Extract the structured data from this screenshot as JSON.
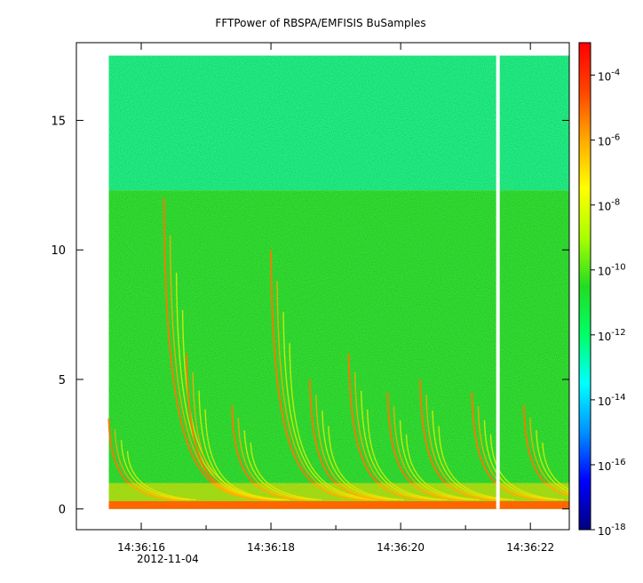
{
  "chart_data": {
    "type": "heatmap",
    "title": "FFTPower of RBSPA/EMFISIS  BuSamples",
    "xlabel": "",
    "ylabel": "",
    "x_range": [
      "14:36:15.0",
      "14:36:22.6"
    ],
    "y_range": [
      -0.8,
      18.0
    ],
    "x_ticks": [
      {
        "value": "14:36:16",
        "label": "14:36:16"
      },
      {
        "value": "14:36:18",
        "label": "14:36:18"
      },
      {
        "value": "14:36:20",
        "label": "14:36:20"
      },
      {
        "value": "14:36:22",
        "label": "14:36:22"
      }
    ],
    "x_minor_ticks": [
      "14:36:15.0",
      "14:36:17.0",
      "14:36:19.0",
      "14:36:21.0"
    ],
    "date_label": "2012-11-04",
    "y_ticks": [
      0,
      5,
      10,
      15
    ],
    "data_extent": {
      "time_start": "14:36:15.5",
      "time_end": "14:36:22.6",
      "freq_min": 0,
      "freq_max": 17.5
    },
    "gaps": [
      {
        "time": "14:36:21.5"
      }
    ],
    "colorbar": {
      "scale": "log",
      "range": [
        1e-18,
        0.001
      ],
      "tick_labels": [
        {
          "base": "10",
          "exp": "-4"
        },
        {
          "base": "10",
          "exp": "-6"
        },
        {
          "base": "10",
          "exp": "-8"
        },
        {
          "base": "10",
          "exp": "-10"
        },
        {
          "base": "10",
          "exp": "-12"
        },
        {
          "base": "10",
          "exp": "-14"
        },
        {
          "base": "10",
          "exp": "-16"
        },
        {
          "base": "10",
          "exp": "-18"
        }
      ],
      "colors": [
        "#00007f",
        "#0000ff",
        "#0090ff",
        "#00ffff",
        "#00ff66",
        "#22dd22",
        "#aaff00",
        "#ffff00",
        "#ffaa00",
        "#ff4400",
        "#ff0000"
      ]
    },
    "bands": [
      {
        "freq_from": 12.3,
        "freq_to": 17.5,
        "level": "1e-11",
        "color": "#22ee88"
      },
      {
        "freq_from": 0,
        "freq_to": 12.3,
        "level": "1e-10",
        "color": "#33dd33"
      }
    ],
    "chorus_bursts": [
      {
        "start": "14:36:15.5",
        "top_freq": 3.5
      },
      {
        "start": "14:36:16.35",
        "top_freq": 12.0
      },
      {
        "start": "14:36:16.7",
        "top_freq": 6.0
      },
      {
        "start": "14:36:17.4",
        "top_freq": 4.0
      },
      {
        "start": "14:36:18.0",
        "top_freq": 10.0
      },
      {
        "start": "14:36:18.6",
        "top_freq": 5.0
      },
      {
        "start": "14:36:19.2",
        "top_freq": 6.0
      },
      {
        "start": "14:36:19.8",
        "top_freq": 4.5
      },
      {
        "start": "14:36:20.3",
        "top_freq": 5.0
      },
      {
        "start": "14:36:21.1",
        "top_freq": 4.5
      },
      {
        "start": "14:36:21.9",
        "top_freq": 4.0
      }
    ]
  }
}
